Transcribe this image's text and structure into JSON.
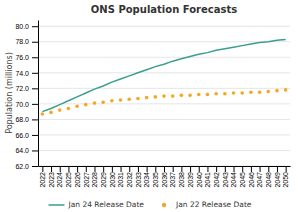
{
  "chart_data": {
    "type": "line",
    "title": "ONS Population Forecasts",
    "ylabel": "Population (millions)",
    "x": [
      2022,
      2023,
      2024,
      2025,
      2026,
      2027,
      2028,
      2029,
      2030,
      2031,
      2032,
      2033,
      2034,
      2035,
      2036,
      2037,
      2038,
      2039,
      2040,
      2041,
      2042,
      2043,
      2044,
      2045,
      2046,
      2047,
      2048,
      2049,
      2050
    ],
    "series": [
      {
        "name": "Jan 24 Release Date",
        "color": "#3a9e8f",
        "line_style": "solid",
        "values": [
          69.0,
          69.4,
          69.9,
          70.4,
          70.9,
          71.4,
          71.9,
          72.3,
          72.8,
          73.2,
          73.6,
          74.0,
          74.4,
          74.8,
          75.1,
          75.5,
          75.8,
          76.1,
          76.4,
          76.6,
          76.9,
          77.1,
          77.3,
          77.5,
          77.7,
          77.9,
          78.0,
          78.2,
          78.3
        ]
      },
      {
        "name": "Jan 22 Release Date",
        "color": "#f5a623",
        "line_style": "none",
        "marker": "circle",
        "values": [
          68.7,
          68.9,
          69.2,
          69.4,
          69.7,
          69.9,
          70.1,
          70.2,
          70.4,
          70.5,
          70.6,
          70.7,
          70.8,
          70.9,
          71.0,
          71.0,
          71.1,
          71.1,
          71.2,
          71.2,
          71.3,
          71.3,
          71.4,
          71.4,
          71.5,
          71.5,
          71.6,
          71.7,
          71.8
        ]
      }
    ],
    "xlim": [
      2021.5,
      2050.5
    ],
    "xticks": [
      2022,
      2023,
      2024,
      2025,
      2026,
      2027,
      2028,
      2029,
      2030,
      2031,
      2032,
      2033,
      2034,
      2035,
      2036,
      2037,
      2038,
      2039,
      2040,
      2041,
      2042,
      2043,
      2044,
      2045,
      2046,
      2047,
      2048,
      2049,
      2050
    ],
    "ylim": [
      62.0,
      80.8
    ],
    "yticks": [
      {
        "value": 62.0,
        "label": "62.0"
      },
      {
        "value": 64.0,
        "label": "64.0"
      },
      {
        "value": 66.0,
        "label": "66.0"
      },
      {
        "value": 68.0,
        "label": "68.0"
      },
      {
        "value": 70.0,
        "label": "70.0"
      },
      {
        "value": 72.0,
        "label": "72.0"
      },
      {
        "value": 74.0,
        "label": "74.0"
      },
      {
        "value": 76.0,
        "label": "76.0"
      },
      {
        "value": 78.0,
        "label": "78.0"
      },
      {
        "value": 80.0,
        "label": "80.0"
      }
    ],
    "grid": true,
    "legend": "bottom"
  }
}
